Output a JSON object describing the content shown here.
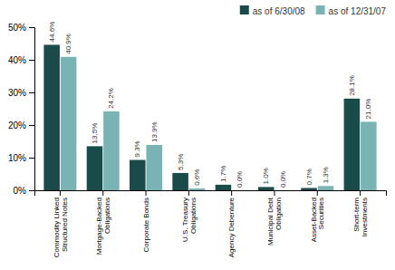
{
  "chart_data": {
    "type": "bar",
    "categories": [
      "Commodity Linked\nStructured Notes",
      "Mortgage-Backed\nObligations",
      "Corporate Bonds",
      "U.S. Treasury\nObligations",
      "Agency Debenture",
      "Municipal Debt\nObligation",
      "Asset-Backed\nSecurities",
      "Short-term\nInvestments"
    ],
    "series": [
      {
        "name": "as of 6/30/08",
        "color": "#1a4a4a",
        "values": [
          44.6,
          13.5,
          9.3,
          5.3,
          1.7,
          1.0,
          0.7,
          28.1
        ],
        "value_labels": [
          "44.6%",
          "13.5%",
          "9.3%",
          "5.3%",
          "1.7%",
          "1.0%",
          "0.7%",
          "28.1%"
        ]
      },
      {
        "name": "as of 12/31/07",
        "color": "#7ab3b3",
        "values": [
          40.9,
          24.2,
          13.9,
          0.6,
          0.0,
          0.0,
          1.3,
          21.0
        ],
        "value_labels": [
          "40.9%",
          "24.2%",
          "13.9%",
          "0.6%",
          "0.0%",
          "0.0%",
          "1.3%",
          "21.0%"
        ]
      }
    ],
    "ylim": [
      0,
      50
    ],
    "yticks": [
      {
        "value": 0,
        "label": "0%"
      },
      {
        "value": 10,
        "label": "10%"
      },
      {
        "value": 20,
        "label": "20%"
      },
      {
        "value": 30,
        "label": "30%"
      },
      {
        "value": 40,
        "label": "40%"
      },
      {
        "value": 50,
        "label": "50%"
      }
    ],
    "data_labels": true,
    "grid": false,
    "legend": "upper right"
  }
}
